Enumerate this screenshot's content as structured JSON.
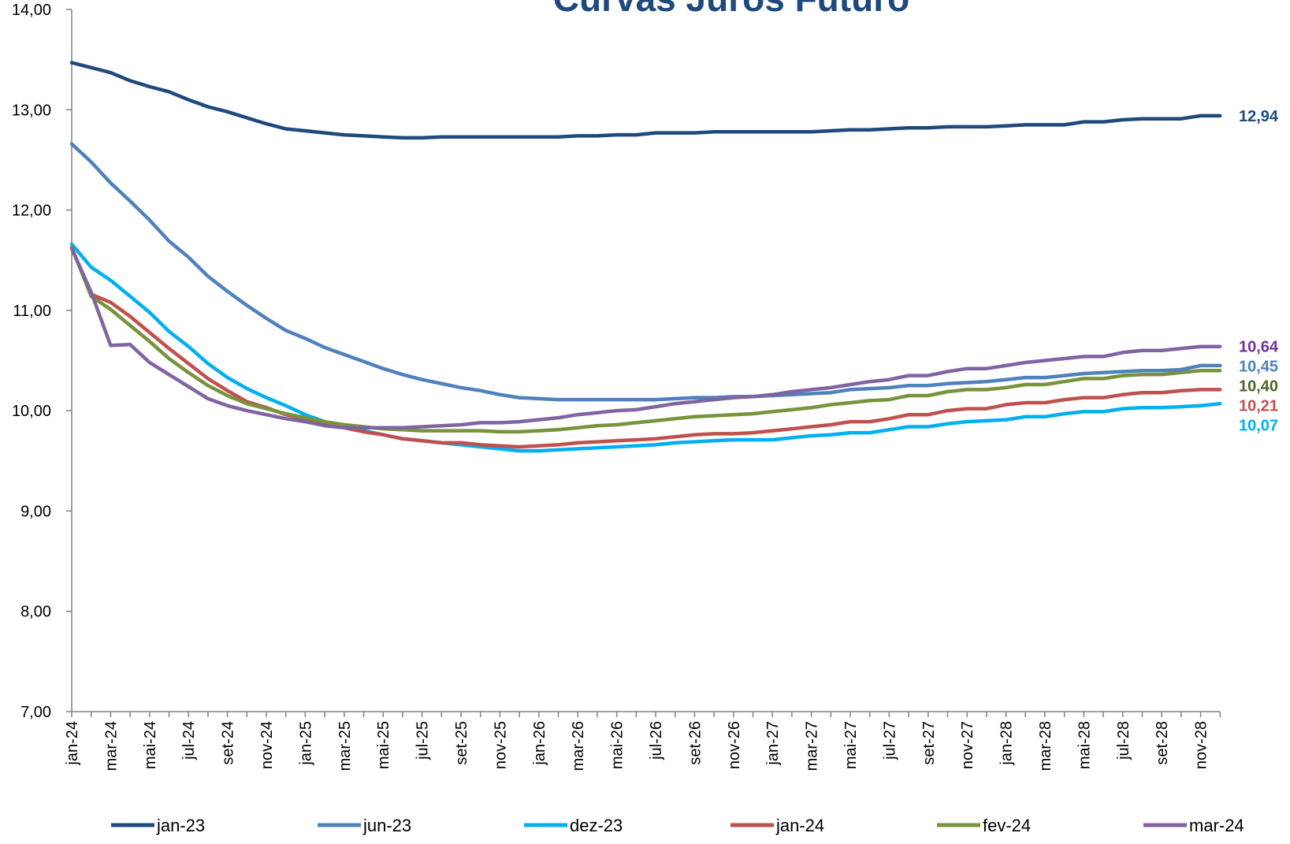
{
  "chart_data": {
    "type": "line",
    "title": "Curvas Juros Futuro",
    "title_color": "#1F497D",
    "ylim": [
      7.0,
      14.0
    ],
    "y_ticks": [
      7.0,
      8.0,
      9.0,
      10.0,
      11.0,
      12.0,
      13.0,
      14.0
    ],
    "y_tick_labels": [
      "7,00",
      "8,00",
      "9,00",
      "10,00",
      "11,00",
      "12,00",
      "13,00",
      "14,00"
    ],
    "x": [
      "jan-24",
      "fev-24",
      "mar-24",
      "abr-24",
      "mai-24",
      "jun-24",
      "jul-24",
      "ago-24",
      "set-24",
      "out-24",
      "nov-24",
      "dez-24",
      "jan-25",
      "fev-25",
      "mar-25",
      "abr-25",
      "mai-25",
      "jun-25",
      "jul-25",
      "ago-25",
      "set-25",
      "out-25",
      "nov-25",
      "dez-25",
      "jan-26",
      "fev-26",
      "mar-26",
      "abr-26",
      "mai-26",
      "jun-26",
      "jul-26",
      "ago-26",
      "set-26",
      "out-26",
      "nov-26",
      "dez-26",
      "jan-27",
      "fev-27",
      "mar-27",
      "abr-27",
      "mai-27",
      "jun-27",
      "jul-27",
      "ago-27",
      "set-27",
      "out-27",
      "nov-27",
      "dez-27",
      "jan-28",
      "fev-28",
      "mar-28",
      "abr-28",
      "mai-28",
      "jun-28",
      "jul-28",
      "ago-28",
      "set-28",
      "out-28",
      "nov-28",
      "dez-28"
    ],
    "x_tick_labels": [
      "jan-24",
      "mar-24",
      "mai-24",
      "jul-24",
      "set-24",
      "nov-24",
      "jan-25",
      "mar-25",
      "mai-25",
      "jul-25",
      "set-25",
      "nov-25",
      "jan-26",
      "mar-26",
      "mai-26",
      "jul-26",
      "set-26",
      "nov-26",
      "jan-27",
      "mar-27",
      "mai-27",
      "jul-27",
      "set-27",
      "nov-27",
      "jan-28",
      "mar-28",
      "mai-28",
      "jul-28",
      "set-28",
      "nov-28"
    ],
    "grid": false,
    "legend_position": "bottom",
    "series": [
      {
        "name": "jan-23",
        "color": "#1F497D",
        "end_label": "12,94",
        "values": [
          13.47,
          13.42,
          13.37,
          13.29,
          13.23,
          13.18,
          13.1,
          13.03,
          12.98,
          12.92,
          12.86,
          12.81,
          12.79,
          12.77,
          12.75,
          12.74,
          12.73,
          12.72,
          12.72,
          12.73,
          12.73,
          12.73,
          12.73,
          12.73,
          12.73,
          12.73,
          12.74,
          12.74,
          12.75,
          12.75,
          12.77,
          12.77,
          12.77,
          12.78,
          12.78,
          12.78,
          12.78,
          12.78,
          12.78,
          12.79,
          12.8,
          12.8,
          12.81,
          12.82,
          12.82,
          12.83,
          12.83,
          12.83,
          12.84,
          12.85,
          12.85,
          12.85,
          12.88,
          12.88,
          12.9,
          12.91,
          12.91,
          12.91,
          12.94,
          12.94
        ]
      },
      {
        "name": "jun-23",
        "color": "#4F81BD",
        "end_label": "10,45",
        "values": [
          12.66,
          12.48,
          12.27,
          12.09,
          11.9,
          11.69,
          11.53,
          11.34,
          11.19,
          11.05,
          10.92,
          10.8,
          10.72,
          10.63,
          10.56,
          10.49,
          10.42,
          10.36,
          10.31,
          10.27,
          10.23,
          10.2,
          10.16,
          10.13,
          10.12,
          10.11,
          10.11,
          10.11,
          10.11,
          10.11,
          10.11,
          10.12,
          10.13,
          10.13,
          10.14,
          10.14,
          10.15,
          10.16,
          10.17,
          10.18,
          10.21,
          10.22,
          10.23,
          10.25,
          10.25,
          10.27,
          10.28,
          10.29,
          10.31,
          10.33,
          10.33,
          10.35,
          10.37,
          10.38,
          10.39,
          10.4,
          10.4,
          10.41,
          10.45,
          10.45
        ]
      },
      {
        "name": "dez-23",
        "color": "#00B0F0",
        "end_label": "10,07",
        "values": [
          11.66,
          11.43,
          11.3,
          11.14,
          10.98,
          10.79,
          10.64,
          10.47,
          10.33,
          10.22,
          10.13,
          10.05,
          9.96,
          9.89,
          9.84,
          9.8,
          9.76,
          9.72,
          9.7,
          9.68,
          9.66,
          9.64,
          9.62,
          9.6,
          9.6,
          9.61,
          9.62,
          9.63,
          9.64,
          9.65,
          9.66,
          9.68,
          9.69,
          9.7,
          9.71,
          9.71,
          9.71,
          9.73,
          9.75,
          9.76,
          9.78,
          9.78,
          9.81,
          9.84,
          9.84,
          9.87,
          9.89,
          9.9,
          9.91,
          9.94,
          9.94,
          9.97,
          9.99,
          9.99,
          10.02,
          10.03,
          10.03,
          10.04,
          10.05,
          10.07
        ]
      },
      {
        "name": "jan-24",
        "color": "#C0504D",
        "end_label": "10,21",
        "values": [
          11.62,
          11.16,
          11.08,
          10.94,
          10.78,
          10.62,
          10.47,
          10.32,
          10.2,
          10.09,
          10.03,
          9.96,
          9.92,
          9.88,
          9.83,
          9.79,
          9.76,
          9.72,
          9.7,
          9.68,
          9.68,
          9.66,
          9.65,
          9.64,
          9.65,
          9.66,
          9.68,
          9.69,
          9.7,
          9.71,
          9.72,
          9.74,
          9.76,
          9.77,
          9.77,
          9.78,
          9.8,
          9.82,
          9.84,
          9.86,
          9.89,
          9.89,
          9.92,
          9.96,
          9.96,
          10.0,
          10.02,
          10.02,
          10.06,
          10.08,
          10.08,
          10.11,
          10.13,
          10.13,
          10.16,
          10.18,
          10.18,
          10.2,
          10.21,
          10.21
        ]
      },
      {
        "name": "fev-24",
        "color": "#77933C",
        "label_color": "#4F6228",
        "end_label": "10,40",
        "values": [
          11.63,
          11.14,
          11.01,
          10.85,
          10.69,
          10.52,
          10.38,
          10.25,
          10.15,
          10.07,
          10.02,
          9.97,
          9.93,
          9.89,
          9.86,
          9.84,
          9.82,
          9.81,
          9.8,
          9.8,
          9.8,
          9.8,
          9.79,
          9.79,
          9.8,
          9.81,
          9.83,
          9.85,
          9.86,
          9.88,
          9.9,
          9.92,
          9.94,
          9.95,
          9.96,
          9.97,
          9.99,
          10.01,
          10.03,
          10.06,
          10.08,
          10.1,
          10.11,
          10.15,
          10.15,
          10.19,
          10.21,
          10.21,
          10.23,
          10.26,
          10.26,
          10.29,
          10.32,
          10.32,
          10.35,
          10.36,
          10.36,
          10.38,
          10.4,
          10.4
        ]
      },
      {
        "name": "mar-24",
        "color": "#8064A2",
        "label_color": "#7030A0",
        "end_label": "10,64",
        "values": [
          11.62,
          11.18,
          10.65,
          10.66,
          10.48,
          10.36,
          10.24,
          10.12,
          10.05,
          10.0,
          9.96,
          9.92,
          9.89,
          9.85,
          9.83,
          9.83,
          9.83,
          9.83,
          9.84,
          9.85,
          9.86,
          9.88,
          9.88,
          9.89,
          9.91,
          9.93,
          9.96,
          9.98,
          10.0,
          10.01,
          10.04,
          10.07,
          10.09,
          10.11,
          10.13,
          10.14,
          10.16,
          10.19,
          10.21,
          10.23,
          10.26,
          10.29,
          10.31,
          10.35,
          10.35,
          10.39,
          10.42,
          10.42,
          10.45,
          10.48,
          10.5,
          10.52,
          10.54,
          10.54,
          10.58,
          10.6,
          10.6,
          10.62,
          10.64,
          10.64
        ]
      }
    ]
  }
}
